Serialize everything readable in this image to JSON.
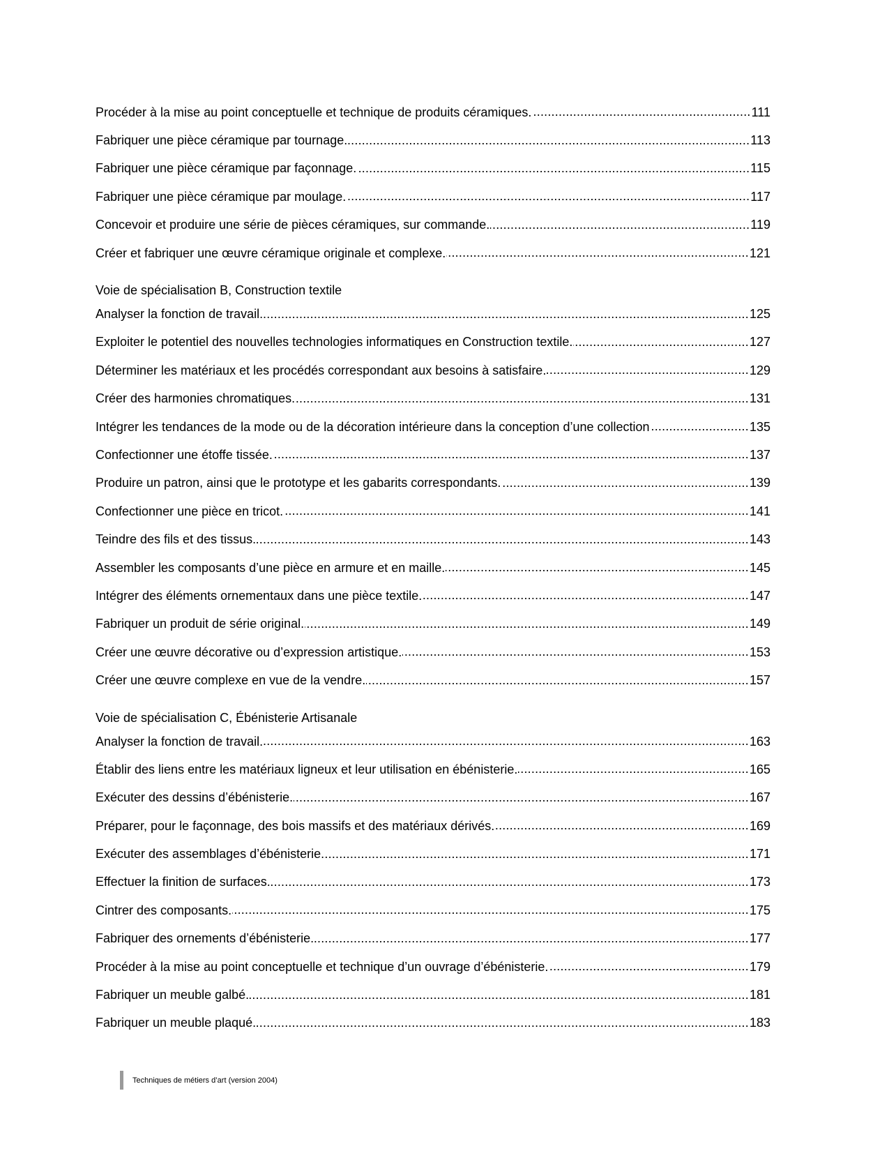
{
  "sections": [
    {
      "heading": "",
      "entries": [
        {
          "title": "Procéder à la mise au point conceptuelle et technique de produits céramiques.",
          "page": "111"
        },
        {
          "title": "Fabriquer une pièce céramique par tournage.",
          "page": "113"
        },
        {
          "title": "Fabriquer une pièce céramique par façonnage.",
          "page": "115"
        },
        {
          "title": "Fabriquer une pièce céramique par moulage.",
          "page": "117"
        },
        {
          "title": "Concevoir et produire une série de pièces céramiques, sur commande.",
          "page": "119"
        },
        {
          "title": "Créer et fabriquer une œuvre céramique originale et complexe.",
          "page": "121"
        }
      ]
    },
    {
      "heading": "Voie de spécialisation B, Construction textile",
      "entries": [
        {
          "title": "Analyser la fonction de travail.",
          "page": "125"
        },
        {
          "title": "Exploiter le potentiel des nouvelles technologies informatiques en Construction textile.",
          "page": "127"
        },
        {
          "title": "Déterminer les matériaux et les procédés correspondant aux besoins à satisfaire.",
          "page": "129"
        },
        {
          "title": "Créer des harmonies chromatiques.",
          "page": "131"
        },
        {
          "title": "Intégrer les tendances de la mode ou de la décoration intérieure dans la conception d’une collection",
          "page": "135"
        },
        {
          "title": "Confectionner une étoffe tissée.",
          "page": "137"
        },
        {
          "title": "Produire un patron, ainsi que le prototype et les gabarits correspondants.",
          "page": "139"
        },
        {
          "title": "Confectionner une pièce en tricot.",
          "page": "141"
        },
        {
          "title": "Teindre des fils et des tissus.",
          "page": "143"
        },
        {
          "title": "Assembler les composants d’une pièce en armure et en maille.",
          "page": "145"
        },
        {
          "title": "Intégrer des éléments ornementaux dans une pièce textile.",
          "page": "147"
        },
        {
          "title": "Fabriquer un produit de série original.",
          "page": "149"
        },
        {
          "title": "Créer une œuvre décorative ou d’expression artistique.",
          "page": "153"
        },
        {
          "title": "Créer une œuvre complexe en vue de la vendre.",
          "page": "157"
        }
      ]
    },
    {
      "heading": "Voie de spécialisation C, Ébénisterie Artisanale",
      "entries": [
        {
          "title": "Analyser la fonction de travail.",
          "page": "163"
        },
        {
          "title": "Établir des liens entre les matériaux ligneux et leur utilisation en ébénisterie.",
          "page": "165"
        },
        {
          "title": "Exécuter des dessins d’ébénisterie.",
          "page": "167"
        },
        {
          "title": "Préparer, pour le façonnage, des bois massifs et des matériaux dérivés.",
          "page": "169"
        },
        {
          "title": "Exécuter des assemblages d’ébénisterie.",
          "page": "171"
        },
        {
          "title": "Effectuer la finition de surfaces.",
          "page": "173"
        },
        {
          "title": "Cintrer des composants.",
          "page": "175"
        },
        {
          "title": "Fabriquer des ornements d’ébénisterie.",
          "page": "177"
        },
        {
          "title": "Procéder à la mise au point conceptuelle et technique d’un ouvrage d’ébénisterie.",
          "page": "179"
        },
        {
          "title": "Fabriquer un meuble galbé.",
          "page": "181"
        },
        {
          "title": "Fabriquer un meuble plaqué.",
          "page": "183"
        }
      ]
    }
  ],
  "footer": {
    "text": "Techniques de métiers d’art (version 2004)"
  }
}
